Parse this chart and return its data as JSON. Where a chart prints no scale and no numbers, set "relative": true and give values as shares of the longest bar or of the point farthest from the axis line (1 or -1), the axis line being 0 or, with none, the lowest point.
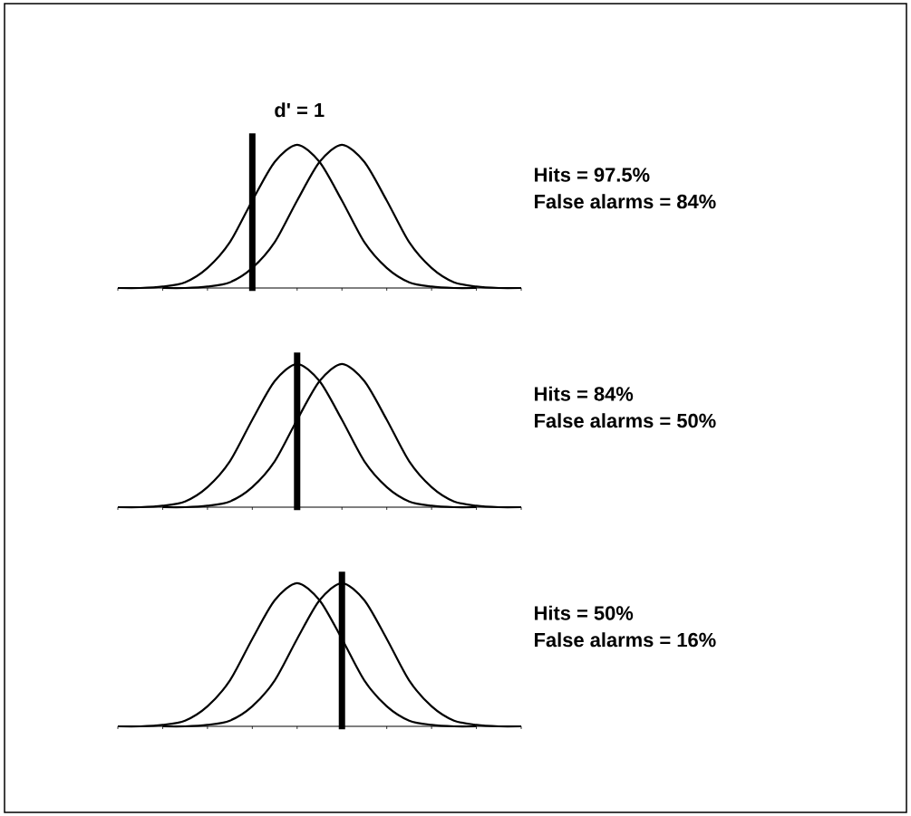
{
  "chart_data": [
    {
      "type": "line",
      "relative": true,
      "title": "d' = 1",
      "categories": [
        null,
        null,
        null,
        null,
        null,
        null,
        null,
        null,
        null,
        null,
        null,
        null,
        null,
        null,
        null,
        null,
        null,
        null,
        null
      ],
      "marker": "none",
      "grid": false,
      "series": [
        {
          "color": "#000000",
          "values": [
            0,
            0,
            0.01,
            0.04,
            0.14,
            0.32,
            0.61,
            0.88,
            1,
            0.88,
            0.61,
            0.32,
            0.14,
            0.04,
            0.01,
            0,
            0,
            null,
            null
          ]
        },
        {
          "color": "#000000",
          "values": [
            null,
            null,
            0,
            0,
            0.01,
            0.04,
            0.14,
            0.32,
            0.61,
            0.88,
            1,
            0.88,
            0.61,
            0.32,
            0.14,
            0.04,
            0.01,
            0,
            0
          ]
        }
      ],
      "annotations": [
        "Hits = 97.5%",
        "False alarms = 84%"
      ]
    },
    {
      "type": "line",
      "relative": true,
      "categories": [
        null,
        null,
        null,
        null,
        null,
        null,
        null,
        null,
        null,
        null,
        null,
        null,
        null,
        null,
        null,
        null,
        null,
        null,
        null
      ],
      "marker": "none",
      "grid": false,
      "series": [
        {
          "color": "#000000",
          "values": [
            0,
            0,
            0.01,
            0.04,
            0.14,
            0.32,
            0.61,
            0.88,
            1,
            0.88,
            0.61,
            0.32,
            0.14,
            0.04,
            0.01,
            0,
            0,
            null,
            null
          ]
        },
        {
          "color": "#000000",
          "values": [
            null,
            null,
            0,
            0,
            0.01,
            0.04,
            0.14,
            0.32,
            0.61,
            0.88,
            1,
            0.88,
            0.61,
            0.32,
            0.14,
            0.04,
            0.01,
            0,
            0
          ]
        }
      ],
      "annotations": [
        "Hits = 84%",
        "False alarms =  50%"
      ]
    },
    {
      "type": "line",
      "relative": true,
      "categories": [
        null,
        null,
        null,
        null,
        null,
        null,
        null,
        null,
        null,
        null,
        null,
        null,
        null,
        null,
        null,
        null,
        null,
        null,
        null
      ],
      "marker": "none",
      "grid": false,
      "series": [
        {
          "color": "#000000",
          "values": [
            0,
            0,
            0.01,
            0.04,
            0.14,
            0.32,
            0.61,
            0.88,
            1,
            0.88,
            0.61,
            0.32,
            0.14,
            0.04,
            0.01,
            0,
            0,
            null,
            null
          ]
        },
        {
          "color": "#000000",
          "values": [
            null,
            null,
            0,
            0,
            0.01,
            0.04,
            0.14,
            0.32,
            0.61,
            0.88,
            1,
            0.88,
            0.61,
            0.32,
            0.14,
            0.04,
            0.01,
            0,
            0
          ]
        }
      ],
      "annotations": [
        "Hits = 50%",
        "False alarms =  16%"
      ]
    }
  ]
}
